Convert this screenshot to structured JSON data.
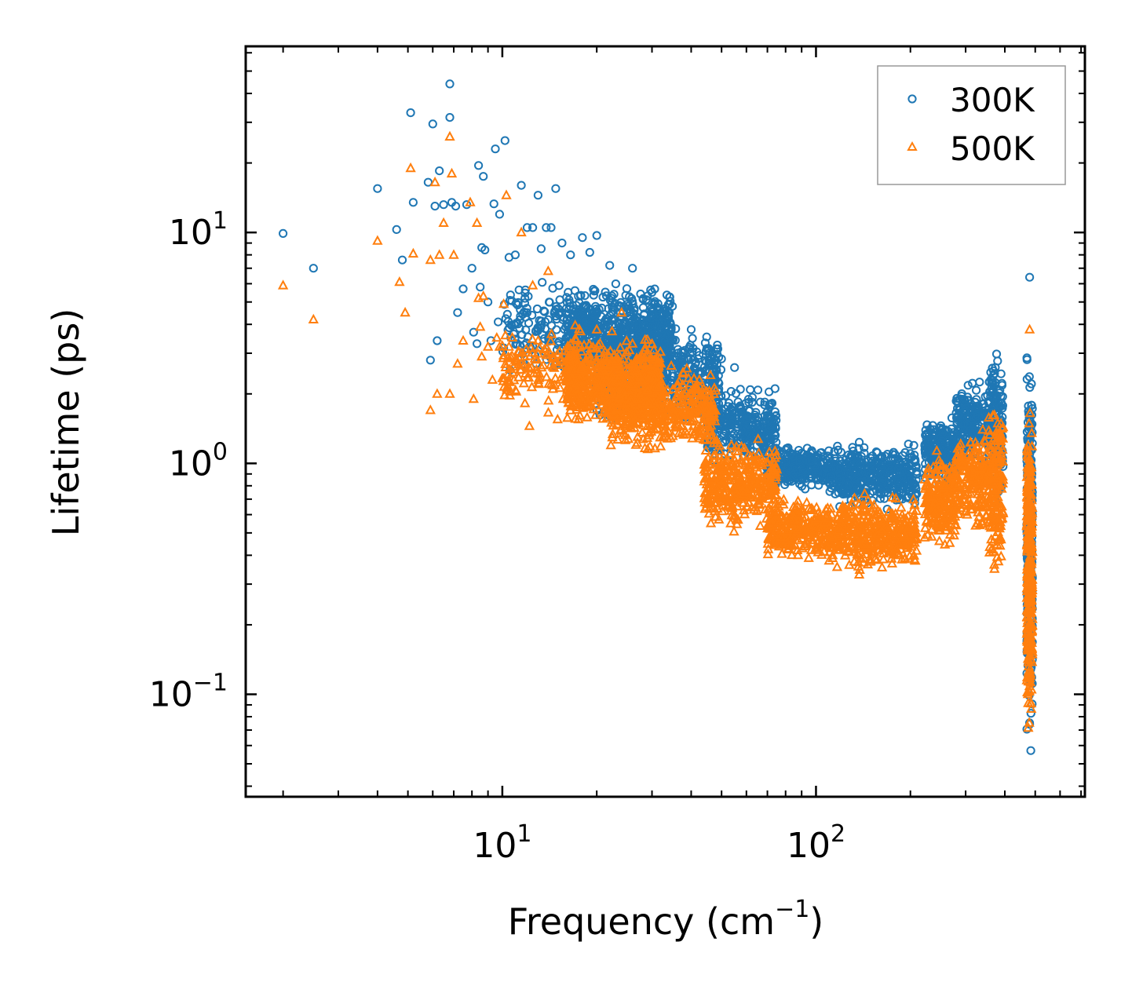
{
  "chart_data": {
    "type": "scatter",
    "xscale": "log",
    "yscale": "log",
    "xlabel": "Frequency (cm",
    "xlabel_sup": "−1",
    "xlabel_end": ")",
    "ylabel": "Lifetime (ps)",
    "xlim": [
      1.52,
      720
    ],
    "ylim": [
      0.036,
      64
    ],
    "xticks": [
      {
        "value": 10,
        "base": "10",
        "exp": "1"
      },
      {
        "value": 100,
        "base": "10",
        "exp": "2"
      }
    ],
    "yticks": [
      {
        "value": 0.1,
        "base": "10",
        "exp": "−1"
      },
      {
        "value": 1,
        "base": "10",
        "exp": "0"
      },
      {
        "value": 10,
        "base": "10",
        "exp": "1"
      }
    ],
    "legend_position": "top-right",
    "series": [
      {
        "name": "300K",
        "marker": "circle",
        "color": "#1f77b4",
        "points": [
          [
            2.0,
            9.9
          ],
          [
            2.5,
            7.0
          ],
          [
            4.0,
            15.5
          ],
          [
            4.6,
            10.3
          ],
          [
            4.8,
            7.6
          ],
          [
            5.1,
            33.0
          ],
          [
            5.2,
            13.5
          ],
          [
            5.8,
            16.5
          ],
          [
            5.9,
            2.8
          ],
          [
            6.0,
            29.5
          ],
          [
            6.1,
            13.0
          ],
          [
            6.2,
            3.4
          ],
          [
            6.3,
            18.5
          ],
          [
            6.5,
            13.2
          ],
          [
            6.8,
            44.0
          ],
          [
            6.8,
            31.5
          ],
          [
            6.9,
            13.5
          ],
          [
            7.1,
            13.0
          ],
          [
            7.2,
            4.5
          ],
          [
            7.5,
            5.7
          ],
          [
            7.7,
            13.2
          ],
          [
            8.0,
            7.0
          ],
          [
            8.1,
            3.7
          ],
          [
            8.3,
            3.3
          ],
          [
            8.4,
            19.5
          ],
          [
            8.5,
            5.8
          ],
          [
            8.6,
            8.6
          ],
          [
            8.7,
            17.5
          ],
          [
            8.8,
            8.4
          ],
          [
            9.0,
            5.0
          ],
          [
            9.2,
            3.4
          ],
          [
            9.4,
            13.3
          ],
          [
            9.5,
            23.0
          ],
          [
            9.7,
            4.1
          ],
          [
            9.8,
            12.0
          ],
          [
            10.2,
            25.0
          ],
          [
            10.5,
            7.8
          ],
          [
            11.0,
            8.0
          ],
          [
            11.5,
            16.0
          ],
          [
            12.0,
            10.5
          ],
          [
            12.5,
            10.5
          ],
          [
            13.0,
            14.5
          ],
          [
            13.3,
            8.5
          ],
          [
            13.8,
            10.5
          ],
          [
            14.3,
            10.5
          ],
          [
            14.8,
            15.5
          ],
          [
            15.5,
            9.0
          ],
          [
            16.5,
            8.0
          ],
          [
            18.0,
            9.5
          ],
          [
            19.0,
            8.2
          ],
          [
            20.0,
            9.7
          ],
          [
            22.0,
            7.2
          ],
          [
            26.0,
            7.0
          ],
          [
            30.0,
            5.5
          ],
          [
            40.0,
            3.8
          ],
          [
            55.0,
            2.6
          ],
          [
            480.0,
            6.4
          ]
        ],
        "bands": [
          {
            "x": [
              10,
              18
            ],
            "y": [
              2.2,
              6.8
            ],
            "n": 150
          },
          {
            "x": [
              16,
              35
            ],
            "y": [
              2.0,
              6.5
            ],
            "n": 650
          },
          {
            "x": [
              20,
              50
            ],
            "y": [
              1.3,
              4.5
            ],
            "n": 500
          },
          {
            "x": [
              45,
              75
            ],
            "y": [
              0.9,
              2.3
            ],
            "n": 320
          },
          {
            "x": [
              70,
              110
            ],
            "y": [
              0.75,
              1.25
            ],
            "n": 260
          },
          {
            "x": [
              110,
              210
            ],
            "y": [
              0.6,
              1.3
            ],
            "n": 420
          },
          {
            "x": [
              222,
              280
            ],
            "y": [
              0.75,
              1.7
            ],
            "n": 220
          },
          {
            "x": [
              280,
              355
            ],
            "y": [
              0.9,
              2.4
            ],
            "n": 200
          },
          {
            "x": [
              355,
              395
            ],
            "y": [
              0.6,
              3.7
            ],
            "n": 160
          },
          {
            "x": [
              470,
              490
            ],
            "y": [
              0.05,
              3.8
            ],
            "n": 320
          }
        ]
      },
      {
        "name": "500K",
        "marker": "triangle",
        "color": "#ff7f0e",
        "points": [
          [
            2.0,
            5.9
          ],
          [
            2.5,
            4.2
          ],
          [
            4.0,
            9.2
          ],
          [
            4.7,
            6.1
          ],
          [
            4.9,
            4.5
          ],
          [
            5.1,
            19.0
          ],
          [
            5.2,
            8.1
          ],
          [
            5.9,
            1.7
          ],
          [
            5.9,
            7.6
          ],
          [
            6.1,
            16.5
          ],
          [
            6.2,
            2.0
          ],
          [
            6.3,
            8.0
          ],
          [
            6.5,
            11.0
          ],
          [
            6.8,
            2.0
          ],
          [
            6.8,
            26.0
          ],
          [
            6.9,
            18.0
          ],
          [
            7.0,
            8.0
          ],
          [
            7.2,
            2.7
          ],
          [
            7.5,
            3.4
          ],
          [
            7.9,
            13.5
          ],
          [
            8.1,
            1.9
          ],
          [
            8.3,
            11.0
          ],
          [
            8.4,
            5.2
          ],
          [
            8.5,
            3.9
          ],
          [
            8.6,
            2.9
          ],
          [
            8.7,
            5.3
          ],
          [
            9.0,
            3.2
          ],
          [
            9.3,
            2.3
          ],
          [
            9.6,
            3.5
          ],
          [
            9.8,
            3.2
          ],
          [
            10.1,
            4.9
          ],
          [
            10.3,
            14.5
          ],
          [
            10.5,
            3.2
          ],
          [
            11.0,
            2.8
          ],
          [
            11.5,
            10.0
          ],
          [
            12.2,
            1.45
          ],
          [
            12.5,
            5.9
          ],
          [
            13.0,
            3.4
          ],
          [
            14.0,
            6.8
          ],
          [
            14.5,
            2.1
          ],
          [
            15.0,
            1.55
          ],
          [
            17.5,
            1.55
          ],
          [
            20.0,
            3.8
          ],
          [
            24.0,
            4.5
          ],
          [
            26.0,
            3.3
          ],
          [
            28.0,
            2.9
          ],
          [
            480.0,
            3.8
          ]
        ],
        "bands": [
          {
            "x": [
              10,
              18
            ],
            "y": [
              1.6,
              4.2
            ],
            "n": 150
          },
          {
            "x": [
              16,
              32
            ],
            "y": [
              1.35,
              3.8
            ],
            "n": 650
          },
          {
            "x": [
              22,
              48
            ],
            "y": [
              1.05,
              2.9
            ],
            "n": 450
          },
          {
            "x": [
              44,
              75
            ],
            "y": [
              0.48,
              1.35
            ],
            "n": 380
          },
          {
            "x": [
              70,
              110
            ],
            "y": [
              0.36,
              0.75
            ],
            "n": 280
          },
          {
            "x": [
              110,
              210
            ],
            "y": [
              0.32,
              0.78
            ],
            "n": 420
          },
          {
            "x": [
              222,
              280
            ],
            "y": [
              0.4,
              1.2
            ],
            "n": 220
          },
          {
            "x": [
              280,
              355
            ],
            "y": [
              0.47,
              1.55
            ],
            "n": 200
          },
          {
            "x": [
              355,
              395
            ],
            "y": [
              0.28,
              2.2
            ],
            "n": 160
          },
          {
            "x": [
              470,
              490
            ],
            "y": [
              0.05,
              2.3
            ],
            "n": 320
          }
        ]
      }
    ]
  }
}
